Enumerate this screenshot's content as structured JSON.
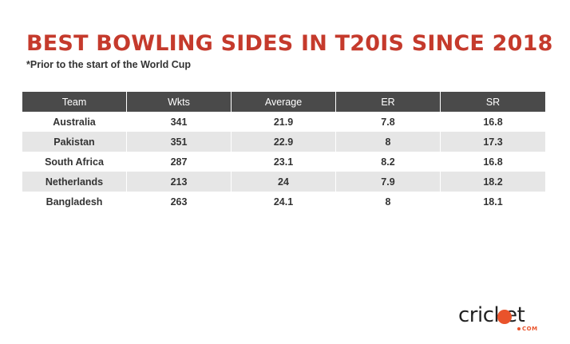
{
  "chart_data": {
    "type": "table",
    "title": "BEST BOWLING SIDES IN T20IS SINCE 2018",
    "subtitle": "*Prior to the start of the World Cup",
    "columns": [
      "Team",
      "Wkts",
      "Average",
      "ER",
      "SR"
    ],
    "rows": [
      [
        "Australia",
        "341",
        "21.9",
        "7.8",
        "16.8"
      ],
      [
        "Pakistan",
        "351",
        "22.9",
        "8",
        "17.3"
      ],
      [
        "South Africa",
        "287",
        "23.1",
        "8.2",
        "16.8"
      ],
      [
        "Netherlands",
        "213",
        "24",
        "7.9",
        "18.2"
      ],
      [
        "Bangladesh",
        "263",
        "24.1",
        "8",
        "18.1"
      ]
    ],
    "colors": {
      "title": "#c53a2c",
      "header_bg": "#4a4a4a",
      "stripe_bg": "#e6e6e6"
    }
  },
  "logo": {
    "wordmark": "cricket",
    "suffix": "COM",
    "accent": "#e9532b"
  }
}
